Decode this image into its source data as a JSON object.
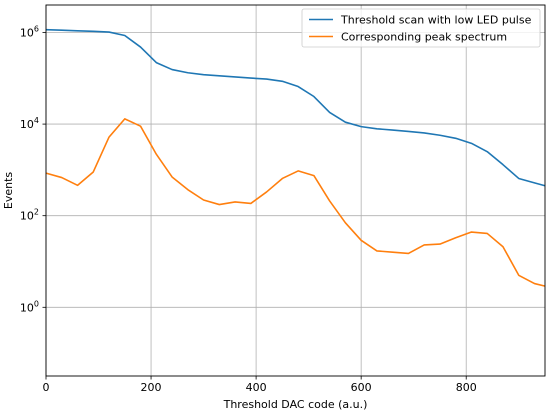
{
  "chart_data": {
    "type": "line",
    "xlabel": "Threshold DAC code (a.u.)",
    "ylabel": "Events",
    "xlim": [
      0,
      950
    ],
    "ylim_log10": [
      -1.5,
      6.6
    ],
    "yscale": "log",
    "grid": true,
    "legend_position": "top-right",
    "x_ticks": [
      {
        "value": 0,
        "label": "0"
      },
      {
        "value": 200,
        "label": "200"
      },
      {
        "value": 400,
        "label": "400"
      },
      {
        "value": 600,
        "label": "600"
      },
      {
        "value": 800,
        "label": "800"
      }
    ],
    "y_ticks": [
      {
        "value": 1,
        "base": "10",
        "exp": "0"
      },
      {
        "value": 100,
        "base": "10",
        "exp": "2"
      },
      {
        "value": 10000,
        "base": "10",
        "exp": "4"
      },
      {
        "value": 1000000,
        "base": "10",
        "exp": "6"
      }
    ],
    "series": [
      {
        "name": "Threshold scan with low LED pulse",
        "color": "#1f77b4",
        "x": [
          0,
          30,
          60,
          90,
          120,
          150,
          180,
          210,
          240,
          270,
          300,
          330,
          360,
          390,
          420,
          450,
          480,
          510,
          540,
          570,
          600,
          630,
          660,
          690,
          720,
          750,
          780,
          810,
          840,
          870,
          900,
          930,
          950
        ],
        "y": [
          1150000,
          1120000,
          1090000,
          1060000,
          1020000,
          860000,
          480000,
          220000,
          155000,
          132000,
          120000,
          113000,
          107000,
          101000,
          96000,
          86000,
          66000,
          40000,
          18000,
          11000,
          8800,
          7900,
          7400,
          6900,
          6400,
          5700,
          4900,
          3800,
          2500,
          1300,
          650,
          520,
          450
        ]
      },
      {
        "name": "Corresponding peak spectrum",
        "color": "#ff7f0e",
        "x": [
          0,
          30,
          60,
          90,
          120,
          150,
          180,
          210,
          240,
          270,
          300,
          330,
          360,
          390,
          420,
          450,
          480,
          510,
          540,
          570,
          600,
          630,
          660,
          690,
          720,
          750,
          780,
          810,
          840,
          870,
          900,
          930,
          950
        ],
        "y": [
          850,
          680,
          460,
          900,
          5200,
          13000,
          9000,
          2200,
          700,
          370,
          220,
          175,
          200,
          185,
          330,
          650,
          950,
          750,
          210,
          70,
          29,
          17,
          16,
          15,
          23,
          24,
          33,
          44,
          41,
          21,
          5,
          3.3,
          2.9
        ]
      }
    ]
  }
}
